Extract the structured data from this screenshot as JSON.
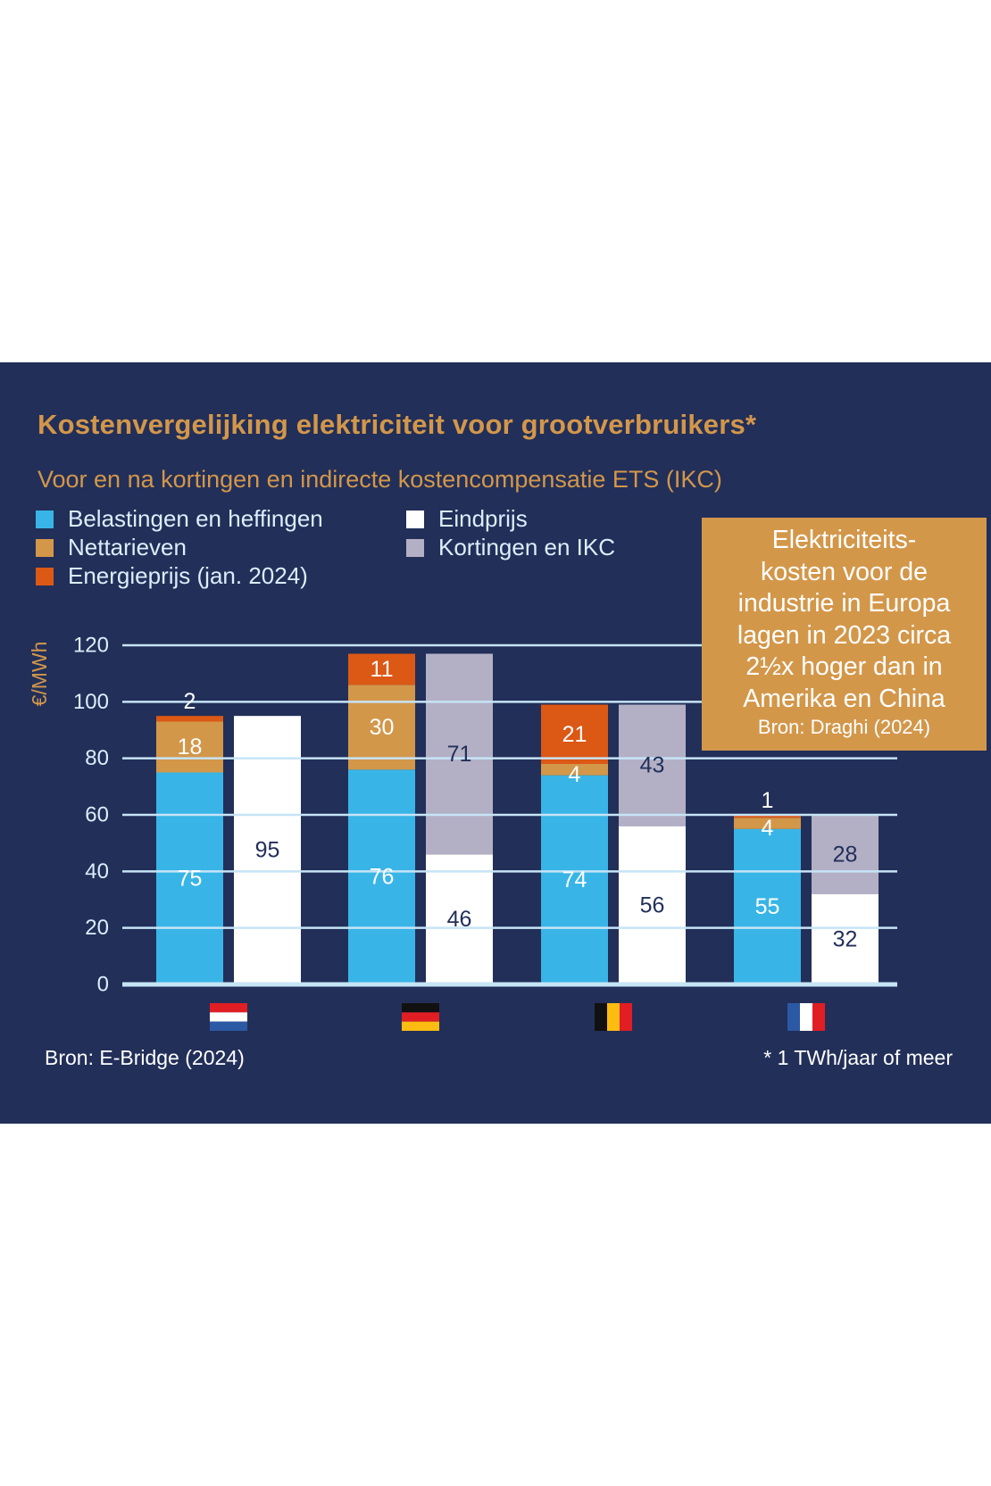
{
  "colors": {
    "background": "#222f59",
    "title": "#d3974a",
    "belastingen": "#38b5e6",
    "nettarieven": "#d3974a",
    "energieprijs": "#dc5815",
    "eindprijs": "#ffffff",
    "kortingen": "#b3b0c5",
    "gridline": "#c6e4f6",
    "dark_label": "#222f59"
  },
  "header": {
    "title": "Kostenvergelijking elektriciteit voor grootverbruikers*",
    "subtitle": "Voor en na kortingen en indirecte kostencompensatie ETS (IKC)"
  },
  "callout": {
    "lines": [
      "Elektriciteits-",
      "kosten voor de",
      "industrie in Europa",
      "lagen in 2023 circa",
      "2½x hoger dan in",
      "Amerika en China"
    ],
    "source": "Bron: Draghi (2024)"
  },
  "footer": {
    "source": "Bron: E-Bridge (2024)",
    "note": "* 1 TWh/jaar of meer"
  },
  "chart_data": {
    "type": "bar",
    "stacked": true,
    "title": "Kostenvergelijking elektriciteit voor grootverbruikers*",
    "subtitle": "Voor en na kortingen en indirecte kostencompensatie ETS (IKC)",
    "ylabel": "€/MWh",
    "xlabel": "",
    "ylim": [
      0,
      120
    ],
    "yticks": [
      0,
      20,
      40,
      60,
      80,
      100,
      120
    ],
    "grid": true,
    "legend_position": "top-left",
    "legend": [
      {
        "key": "belastingen",
        "label": "Belastingen en heffingen"
      },
      {
        "key": "nettarieven",
        "label": "Nettarieven"
      },
      {
        "key": "energieprijs",
        "label": "Energieprijs (jan. 2024)"
      },
      {
        "key": "eindprijs",
        "label": "Eindprijs"
      },
      {
        "key": "kortingen",
        "label": "Kortingen en IKC"
      }
    ],
    "categories": [
      "Nederland",
      "Duitsland",
      "België",
      "Frankrijk"
    ],
    "category_icons": [
      "flag-netherlands",
      "flag-germany",
      "flag-belgium",
      "flag-france"
    ],
    "before": {
      "series": [
        {
          "key": "belastingen",
          "name": "Belastingen en heffingen",
          "values": [
            75,
            76,
            74,
            55
          ]
        },
        {
          "key": "nettarieven",
          "name": "Nettarieven",
          "values": [
            18,
            30,
            4,
            4
          ]
        },
        {
          "key": "energieprijs",
          "name": "Energieprijs (jan. 2024)",
          "values": [
            2,
            11,
            21,
            1
          ]
        }
      ]
    },
    "after": {
      "series": [
        {
          "key": "eindprijs",
          "name": "Eindprijs",
          "values": [
            95,
            46,
            56,
            32
          ]
        },
        {
          "key": "kortingen",
          "name": "Kortingen en IKC",
          "values": [
            0,
            71,
            43,
            28
          ]
        }
      ]
    }
  }
}
